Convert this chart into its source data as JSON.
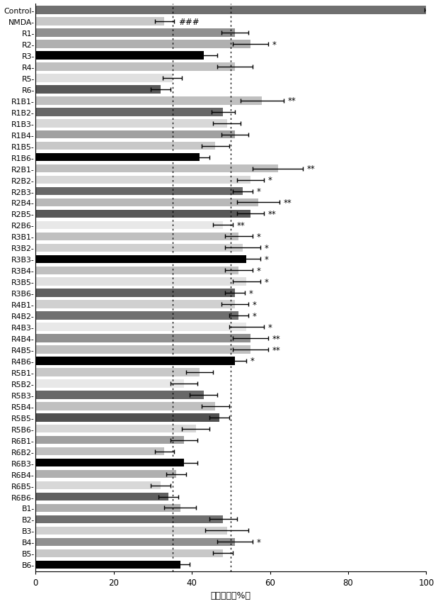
{
  "categories": [
    "Control",
    "NMDA",
    "R1",
    "R2",
    "R3",
    "R4",
    "R5",
    "R6",
    "R1B1",
    "R1B2",
    "R1B3",
    "R1B4",
    "R1B5",
    "R1B6",
    "R2B1",
    "R2B2",
    "R2B3",
    "R2B4",
    "R2B5",
    "R2B6",
    "R3B1",
    "R3B2",
    "R3B3",
    "R3B4",
    "R3B5",
    "R3B6",
    "R4B1",
    "R4B2",
    "R4B3",
    "R4B4",
    "R4B5",
    "R4B6",
    "R5B1",
    "R5B2",
    "R5B3",
    "R5B4",
    "R5B5",
    "R5B6",
    "R6B1",
    "R6B2",
    "R6B3",
    "R6B4",
    "R6B5",
    "R6B6",
    "B1",
    "B2",
    "B3",
    "B4",
    "B5",
    "B6"
  ],
  "values": [
    100,
    33,
    51,
    55,
    43,
    51,
    35,
    32,
    58,
    48,
    49,
    51,
    46,
    42,
    62,
    55,
    53,
    57,
    55,
    48,
    52,
    53,
    54,
    52,
    54,
    51,
    51,
    52,
    54,
    55,
    55,
    51,
    42,
    38,
    43,
    46,
    47,
    41,
    38,
    33,
    38,
    36,
    32,
    34,
    37,
    48,
    49,
    51,
    48,
    37
  ],
  "errors": [
    0.5,
    2.5,
    3.5,
    4.5,
    3.5,
    4.5,
    2.5,
    2.5,
    5.5,
    3,
    3.5,
    3.5,
    3.5,
    2.5,
    6.5,
    3.5,
    2.5,
    5.5,
    3.5,
    2.5,
    3.5,
    4.5,
    3.5,
    3.5,
    3.5,
    2.5,
    3.5,
    2.5,
    4.5,
    4.5,
    4.5,
    3,
    3.5,
    3.5,
    3.5,
    3.5,
    2.5,
    3.5,
    3.5,
    2.5,
    3.5,
    2.5,
    2.5,
    2.5,
    4,
    3.5,
    5.5,
    4.5,
    2.5,
    2.5
  ],
  "colors": [
    "#707070",
    "#c8c8c8",
    "#909090",
    "#b0b0b0",
    "#000000",
    "#c0c0c0",
    "#e0e0e0",
    "#585858",
    "#c0c0c0",
    "#686868",
    "#d8d8d8",
    "#a0a0a0",
    "#c8c8c8",
    "#000000",
    "#c0c0c0",
    "#d8d8d8",
    "#686868",
    "#b8b8b8",
    "#585858",
    "#e8e8e8",
    "#c0c0c0",
    "#d0d0d0",
    "#000000",
    "#c0c0c0",
    "#e0e0e0",
    "#606060",
    "#d0d0d0",
    "#707070",
    "#e8e8e8",
    "#909090",
    "#c0c0c0",
    "#000000",
    "#c8c8c8",
    "#e8e8e8",
    "#686868",
    "#c0c0c0",
    "#505050",
    "#d8d8d8",
    "#a0a0a0",
    "#c0c0c0",
    "#000000",
    "#b0b0b0",
    "#d8d8d8",
    "#606060",
    "#b0b0b0",
    "#707070",
    "#d0d0d0",
    "#909090",
    "#c8c8c8",
    "#000000"
  ],
  "annotations": {
    "NMDA": "###",
    "R2": "*",
    "R1B1": "**",
    "R2B1": "**",
    "R2B2": "*",
    "R2B3": "*",
    "R2B4": "**",
    "R2B5": "**",
    "R2B6": "**",
    "R3B1": "*",
    "R3B2": "*",
    "R3B3": "*",
    "R3B4": "*",
    "R3B5": "*",
    "R3B6": "*",
    "R4B1": "*",
    "R4B2": "*",
    "R4B3": "*",
    "R4B4": "**",
    "R4B5": "**",
    "R4B6": "*",
    "B4": "*"
  },
  "xlabel": "细胞活力（%）",
  "xlim": [
    0,
    100
  ],
  "xticks": [
    0,
    20,
    40,
    60,
    80,
    100
  ],
  "vlines": [
    35,
    50
  ],
  "background_color": "#ffffff",
  "bar_height": 0.72,
  "figsize": [
    6.19,
    8.53
  ],
  "dpi": 100
}
